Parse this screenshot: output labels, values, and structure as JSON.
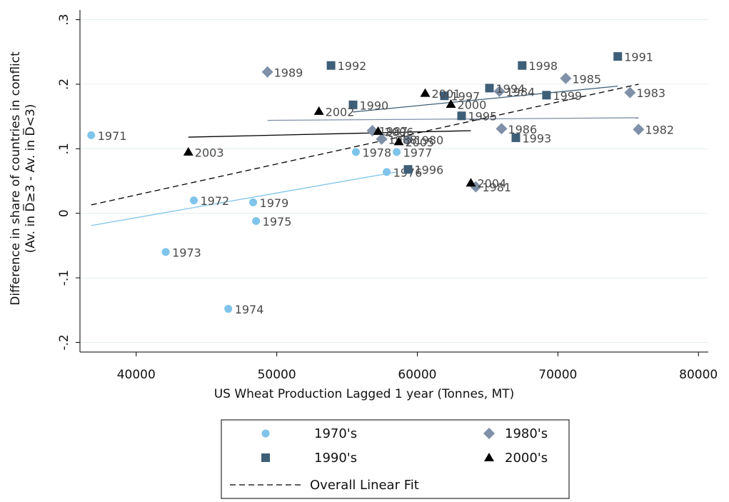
{
  "chart_data": {
    "type": "scatter",
    "xlabel": "US Wheat Production Lagged 1 year (Tonnes, MT)",
    "ylabel": [
      "Difference in share of countries in conflict",
      "(Av. in D̅≥3 - Av. in D̅<3)"
    ],
    "xlim": [
      36000,
      80700
    ],
    "ylim": [
      -0.215,
      0.315
    ],
    "xticks": [
      40000,
      50000,
      60000,
      70000,
      80000
    ],
    "yticks": [
      {
        "value": -0.2,
        "label": "-.2"
      },
      {
        "value": -0.1,
        "label": "-.1"
      },
      0,
      {
        "value": 0.1,
        "label": ".1"
      },
      {
        "value": 0.2,
        "label": ".2"
      },
      {
        "value": 0.3,
        "label": ".3"
      }
    ],
    "grid": true,
    "legend": "bottom",
    "series": [
      {
        "name": "1970's",
        "color": "#7fc4ea",
        "marker": "circle",
        "labels": [
          "1971",
          "1972",
          "1973",
          "1974",
          "1975",
          "1976",
          "1977",
          "1978",
          "1979"
        ],
        "x": [
          36800,
          44100,
          42100,
          46550,
          48530,
          57820,
          58530,
          55630,
          48320
        ],
        "values": [
          0.121,
          0.02,
          -0.06,
          -0.148,
          -0.012,
          0.064,
          0.095,
          0.095,
          0.017
        ],
        "fit_x": [
          36800,
          58530
        ],
        "fit_values": [
          -0.019,
          0.064
        ]
      },
      {
        "name": "1980's",
        "color": "#7f90a8",
        "marker": "diamond",
        "labels": [
          "1980",
          "1981",
          "1982",
          "1983",
          "1984",
          "1985",
          "1986",
          "1987",
          "1988",
          "1989"
        ],
        "x": [
          59340,
          64160,
          75740,
          75130,
          65840,
          70560,
          65990,
          56800,
          57460,
          49340
        ],
        "values": [
          0.114,
          0.041,
          0.13,
          0.187,
          0.189,
          0.209,
          0.131,
          0.128,
          0.115,
          0.219
        ],
        "fit_x": [
          49340,
          75740
        ],
        "fit_values": [
          0.144,
          0.148
        ]
      },
      {
        "name": "1990's",
        "color": "#3e5f78",
        "marker": "square",
        "labels": [
          "1990",
          "1991",
          "1992",
          "1993",
          "1994",
          "1995",
          "1996",
          "1997",
          "1998",
          "1999"
        ],
        "x": [
          55430,
          74260,
          53860,
          67010,
          65130,
          63150,
          59340,
          61930,
          67460,
          69190
        ],
        "values": [
          0.168,
          0.243,
          0.229,
          0.117,
          0.194,
          0.151,
          0.068,
          0.182,
          0.229,
          0.183
        ],
        "fit_x": [
          55430,
          74260
        ],
        "fit_values": [
          0.157,
          0.197
        ]
      },
      {
        "name": "2000's",
        "color": "#000000",
        "marker": "triangle",
        "labels": [
          "2000",
          "2001",
          "2002",
          "2003",
          "2004",
          "2005",
          "2006"
        ],
        "x": [
          62390,
          60560,
          53000,
          43710,
          63810,
          58680,
          57210
        ],
        "values": [
          0.169,
          0.186,
          0.158,
          0.095,
          0.047,
          0.111,
          0.127
        ],
        "fit_x": [
          43710,
          63810
        ],
        "fit_values": [
          0.118,
          0.128
        ]
      }
    ],
    "overall_fit": {
      "name": "Overall Linear Fit",
      "color": "#000000",
      "x": [
        36800,
        75740
      ],
      "values": [
        0.013,
        0.2
      ]
    }
  }
}
